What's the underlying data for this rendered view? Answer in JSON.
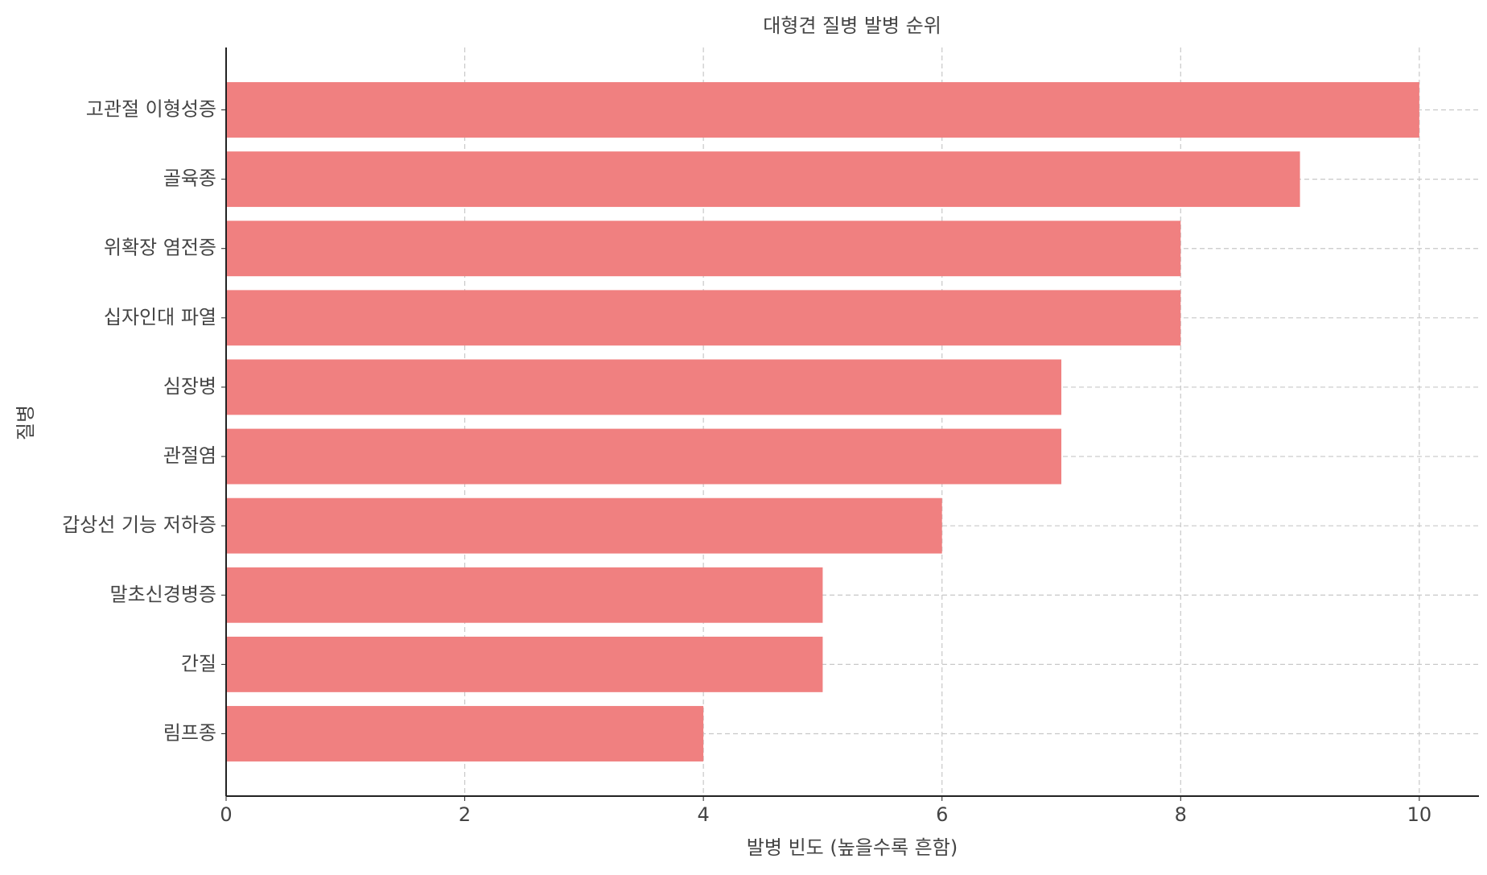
{
  "chart_data": {
    "type": "barh",
    "title": "대형견 질병 발병 순위",
    "xlabel": "발병 빈도 (높을수록 흔함)",
    "ylabel": "질병",
    "categories": [
      "고관절 이형성증",
      "골육종",
      "위확장 염전증",
      "십자인대 파열",
      "심장병",
      "관절염",
      "갑상선 기능 저하증",
      "말초신경병증",
      "간질",
      "림프종"
    ],
    "values": [
      10,
      9,
      8,
      8,
      7,
      7,
      6,
      5,
      5,
      4
    ],
    "color": "#f08080",
    "xlim": [
      0,
      10.5
    ],
    "xticks": [
      0,
      2,
      4,
      6,
      8,
      10
    ],
    "grid": true
  }
}
